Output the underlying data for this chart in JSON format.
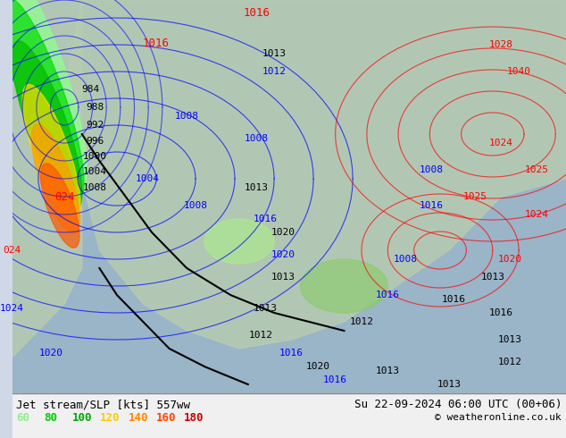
{
  "title_left": "Jet stream/SLP [kts] 557ww",
  "title_right": "Su 22-09-2024 06:00 UTC (00+06)",
  "copyright": "© weatheronline.co.uk",
  "legend_values": [
    60,
    80,
    100,
    120,
    140,
    160,
    180
  ],
  "legend_colors": [
    "#90ee90",
    "#00cc00",
    "#00aa00",
    "#ffcc00",
    "#ff8800",
    "#ff4400",
    "#cc0000"
  ],
  "bg_color": "#d0d8e8",
  "map_bg": "#c8d8c0",
  "figsize": [
    6.34,
    4.9
  ],
  "dpi": 100,
  "bottom_bar_color": "#e8e8e8",
  "title_fontsize": 9,
  "copyright_fontsize": 8,
  "legend_fontsize": 9
}
